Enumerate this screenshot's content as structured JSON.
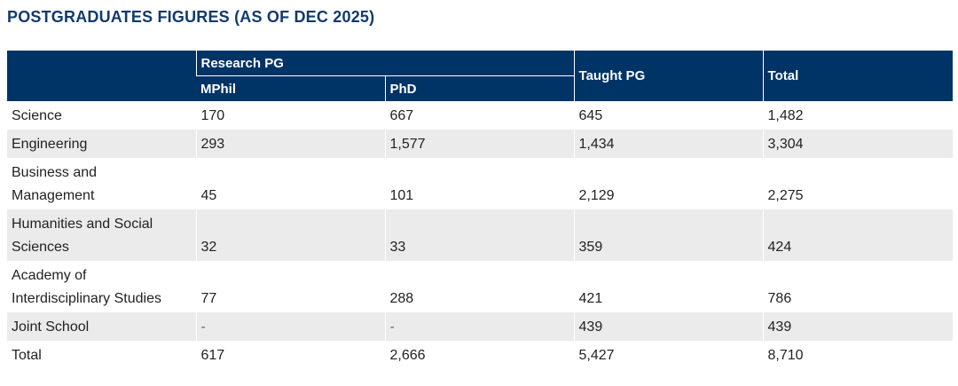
{
  "page": {
    "title": "POSTGRADUATES FIGURES (AS OF DEC 2025)"
  },
  "colors": {
    "header_bg": "#003366",
    "title": "#123a6d",
    "row_shade": "#ebebeb"
  },
  "table": {
    "headers": {
      "research_pg": "Research PG",
      "mphil": "MPhil",
      "phd": "PhD",
      "taught_pg": "Taught PG",
      "total": "Total"
    },
    "rows": [
      {
        "faculty": "Science",
        "mphil": "170",
        "phd": "667",
        "taught_pg": "645",
        "total": "1,482"
      },
      {
        "faculty": "Engineering",
        "mphil": "293",
        "phd": "1,577",
        "taught_pg": "1,434",
        "total": "3,304"
      },
      {
        "faculty_line1": "Business and",
        "faculty_line2": "Management",
        "mphil": "45",
        "phd": "101",
        "taught_pg": "2,129",
        "total": "2,275"
      },
      {
        "faculty_line1": "Humanities and Social",
        "faculty_line2": "Sciences",
        "mphil": "32",
        "phd": "33",
        "taught_pg": "359",
        "total": "424"
      },
      {
        "faculty_line1": "Academy of",
        "faculty_line2": "Interdisciplinary Studies",
        "mphil": "77",
        "phd": "288",
        "taught_pg": "421",
        "total": "786"
      },
      {
        "faculty": "Joint School",
        "mphil": "-",
        "phd": "-",
        "taught_pg": "439",
        "total": "439"
      },
      {
        "faculty": "Total",
        "mphil": "617",
        "phd": "2,666",
        "taught_pg": "5,427",
        "total": "8,710"
      }
    ]
  }
}
